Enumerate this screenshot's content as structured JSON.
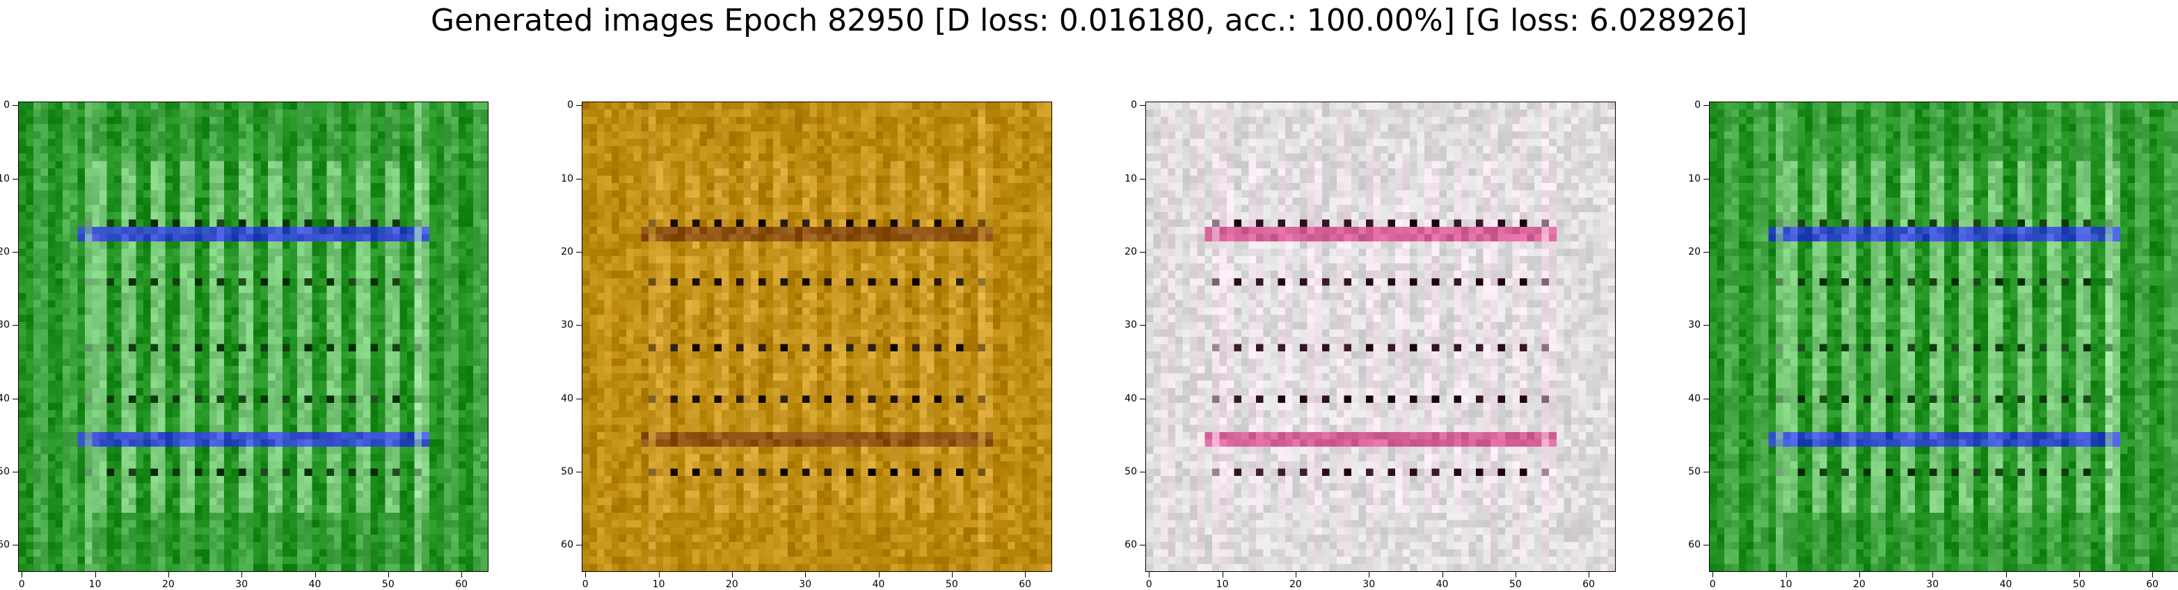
{
  "figure": {
    "title": "Generated images Epoch 82950 [D loss: 0.016180, acc.: 100.00%] [G loss: 6.028926]"
  },
  "axes": {
    "tick_values": [
      0,
      10,
      20,
      30,
      40,
      50,
      60
    ],
    "tick_labels": [
      "0",
      "10",
      "20",
      "30",
      "40",
      "50",
      "60"
    ],
    "pixel_grid": 64
  },
  "images": [
    {
      "name": "generated-image-1",
      "description_colors": {
        "background": "#1f8f1f",
        "stripe": "#b8f0b8",
        "accent": "#2a2aff",
        "dark": "#0d3a0d"
      }
    },
    {
      "name": "generated-image-2",
      "description_colors": {
        "background": "#b8860b",
        "stripe": "#e0b040",
        "accent": "#7a3a10",
        "dark": "#1a0f05"
      }
    },
    {
      "name": "generated-image-3",
      "description_colors": {
        "background": "#dcdcdc",
        "stripe": "#f7e0ec",
        "accent": "#d0307a",
        "dark": "#2a0a1a"
      }
    },
    {
      "name": "generated-image-4",
      "description_colors": {
        "background": "#1f8f1f",
        "stripe": "#b8f0b8",
        "accent": "#2a2aff",
        "dark": "#0d3a0d"
      }
    }
  ]
}
